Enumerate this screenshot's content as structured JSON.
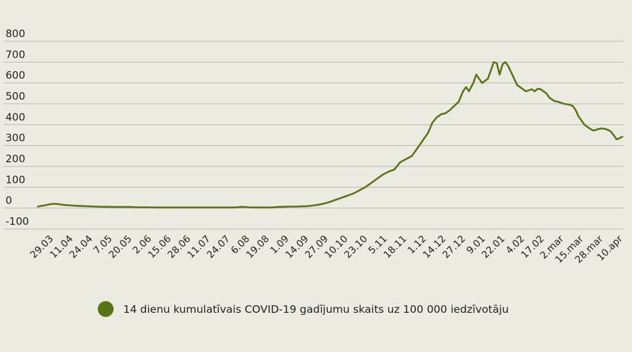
{
  "colors": {
    "background": "#ecebe1",
    "series": "#5a7315",
    "grid": "#b9b8ae"
  },
  "legend": {
    "label": "14 dienu kumulatīvais COVID-19 gadījumu skaits uz 100 000 iedzīvotāju"
  },
  "chart_data": {
    "type": "line",
    "title": "",
    "xlabel": "",
    "ylabel": "",
    "ylim": [
      -100,
      800
    ],
    "yticks": [
      800,
      700,
      600,
      500,
      400,
      300,
      200,
      100,
      0,
      -100
    ],
    "xticks": [
      "29.03",
      "11.04",
      "24.04",
      "7.05",
      "20.05",
      "2.06",
      "15.06",
      "28.06",
      "11.07",
      "24.07",
      "6.08",
      "19.08",
      "1.09",
      "14.09",
      "27.09",
      "10.10",
      "23.10",
      "5.11",
      "18.11",
      "1.12",
      "14.12",
      "27.12",
      "9.01",
      "22.01",
      "4.02",
      "17.02",
      "2.mar",
      "15.mar",
      "28.mar",
      "10.apr"
    ],
    "grid": true,
    "legend_position": "bottom",
    "series": [
      {
        "name": "14 dienu kumulatīvais COVID-19 gadījumu skaits uz 100 000 iedzīvotāju",
        "color": "#5a7315",
        "points": [
          [
            0,
            7
          ],
          [
            2,
            10
          ],
          [
            4,
            12
          ],
          [
            6,
            15
          ],
          [
            8,
            18
          ],
          [
            10,
            20
          ],
          [
            12,
            20
          ],
          [
            14,
            19
          ],
          [
            16,
            17
          ],
          [
            18,
            15
          ],
          [
            20,
            14
          ],
          [
            22,
            13
          ],
          [
            24,
            12
          ],
          [
            26,
            11
          ],
          [
            28,
            10
          ],
          [
            30,
            10
          ],
          [
            32,
            9
          ],
          [
            34,
            9
          ],
          [
            36,
            8
          ],
          [
            40,
            7
          ],
          [
            44,
            6
          ],
          [
            48,
            6
          ],
          [
            52,
            5
          ],
          [
            56,
            5
          ],
          [
            60,
            5
          ],
          [
            64,
            5
          ],
          [
            68,
            4
          ],
          [
            72,
            4
          ],
          [
            76,
            4
          ],
          [
            80,
            3
          ],
          [
            84,
            3
          ],
          [
            88,
            3
          ],
          [
            92,
            3
          ],
          [
            96,
            3
          ],
          [
            100,
            3
          ],
          [
            104,
            3
          ],
          [
            108,
            3
          ],
          [
            112,
            3
          ],
          [
            116,
            3
          ],
          [
            120,
            3
          ],
          [
            124,
            3
          ],
          [
            128,
            3
          ],
          [
            132,
            3
          ],
          [
            136,
            4
          ],
          [
            140,
            6
          ],
          [
            144,
            4
          ],
          [
            148,
            3
          ],
          [
            152,
            3
          ],
          [
            156,
            3
          ],
          [
            160,
            3
          ],
          [
            164,
            5
          ],
          [
            168,
            6
          ],
          [
            172,
            7
          ],
          [
            176,
            7
          ],
          [
            180,
            8
          ],
          [
            184,
            9
          ],
          [
            188,
            12
          ],
          [
            192,
            16
          ],
          [
            196,
            22
          ],
          [
            200,
            30
          ],
          [
            204,
            40
          ],
          [
            208,
            50
          ],
          [
            212,
            60
          ],
          [
            216,
            70
          ],
          [
            220,
            85
          ],
          [
            224,
            100
          ],
          [
            228,
            120
          ],
          [
            232,
            140
          ],
          [
            236,
            160
          ],
          [
            240,
            175
          ],
          [
            244,
            185
          ],
          [
            248,
            220
          ],
          [
            252,
            235
          ],
          [
            256,
            250
          ],
          [
            258,
            270
          ],
          [
            261,
            300
          ],
          [
            264,
            330
          ],
          [
            267,
            360
          ],
          [
            270,
            410
          ],
          [
            273,
            435
          ],
          [
            276,
            450
          ],
          [
            279,
            455
          ],
          [
            282,
            470
          ],
          [
            285,
            490
          ],
          [
            288,
            510
          ],
          [
            291,
            560
          ],
          [
            293,
            580
          ],
          [
            295,
            560
          ],
          [
            298,
            600
          ],
          [
            300,
            640
          ],
          [
            302,
            620
          ],
          [
            304,
            600
          ],
          [
            306,
            610
          ],
          [
            308,
            620
          ],
          [
            310,
            660
          ],
          [
            312,
            700
          ],
          [
            314,
            695
          ],
          [
            316,
            640
          ],
          [
            318,
            690
          ],
          [
            320,
            700
          ],
          [
            322,
            680
          ],
          [
            324,
            650
          ],
          [
            326,
            620
          ],
          [
            328,
            590
          ],
          [
            330,
            580
          ],
          [
            332,
            570
          ],
          [
            334,
            560
          ],
          [
            336,
            565
          ],
          [
            338,
            570
          ],
          [
            340,
            560
          ],
          [
            342,
            572
          ],
          [
            344,
            570
          ],
          [
            346,
            560
          ],
          [
            348,
            550
          ],
          [
            350,
            530
          ],
          [
            352,
            520
          ],
          [
            354,
            512
          ],
          [
            356,
            510
          ],
          [
            358,
            505
          ],
          [
            360,
            500
          ],
          [
            362,
            498
          ],
          [
            364,
            495
          ],
          [
            366,
            490
          ],
          [
            368,
            470
          ],
          [
            370,
            440
          ],
          [
            372,
            420
          ],
          [
            374,
            400
          ],
          [
            376,
            390
          ],
          [
            378,
            380
          ],
          [
            380,
            372
          ],
          [
            382,
            375
          ],
          [
            384,
            380
          ],
          [
            386,
            382
          ],
          [
            388,
            380
          ],
          [
            390,
            375
          ],
          [
            392,
            368
          ],
          [
            394,
            350
          ],
          [
            396,
            330
          ],
          [
            398,
            335
          ],
          [
            400,
            342
          ]
        ]
      }
    ]
  }
}
